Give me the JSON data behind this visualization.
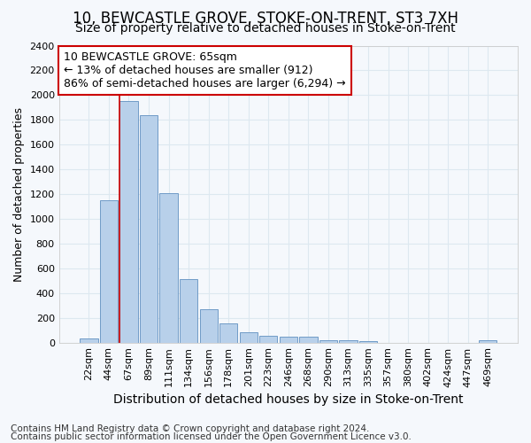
{
  "title": "10, BEWCASTLE GROVE, STOKE-ON-TRENT, ST3 7XH",
  "subtitle": "Size of property relative to detached houses in Stoke-on-Trent",
  "xlabel": "Distribution of detached houses by size in Stoke-on-Trent",
  "ylabel": "Number of detached properties",
  "categories": [
    "22sqm",
    "44sqm",
    "67sqm",
    "89sqm",
    "111sqm",
    "134sqm",
    "156sqm",
    "178sqm",
    "201sqm",
    "223sqm",
    "246sqm",
    "268sqm",
    "290sqm",
    "313sqm",
    "335sqm",
    "357sqm",
    "380sqm",
    "402sqm",
    "424sqm",
    "447sqm",
    "469sqm"
  ],
  "values": [
    30,
    1150,
    1950,
    1840,
    1210,
    510,
    270,
    155,
    80,
    55,
    48,
    45,
    20,
    18,
    12,
    0,
    0,
    0,
    0,
    0,
    15
  ],
  "bar_color": "#b8d0ea",
  "bar_edge_color": "#6090c0",
  "vline_color": "#cc0000",
  "vline_index": 2,
  "annotation_line1": "10 BEWCASTLE GROVE: 65sqm",
  "annotation_line2": "← 13% of detached houses are smaller (912)",
  "annotation_line3": "86% of semi-detached houses are larger (6,294) →",
  "annotation_box_facecolor": "#ffffff",
  "annotation_box_edgecolor": "#cc0000",
  "ylim": [
    0,
    2400
  ],
  "yticks": [
    0,
    200,
    400,
    600,
    800,
    1000,
    1200,
    1400,
    1600,
    1800,
    2000,
    2200,
    2400
  ],
  "footer1": "Contains HM Land Registry data © Crown copyright and database right 2024.",
  "footer2": "Contains public sector information licensed under the Open Government Licence v3.0.",
  "background_color": "#f5f8fc",
  "grid_color": "#dde8f0",
  "title_fontsize": 12,
  "subtitle_fontsize": 10,
  "xlabel_fontsize": 10,
  "ylabel_fontsize": 9,
  "tick_fontsize": 8,
  "annotation_fontsize": 9,
  "footer_fontsize": 7.5
}
